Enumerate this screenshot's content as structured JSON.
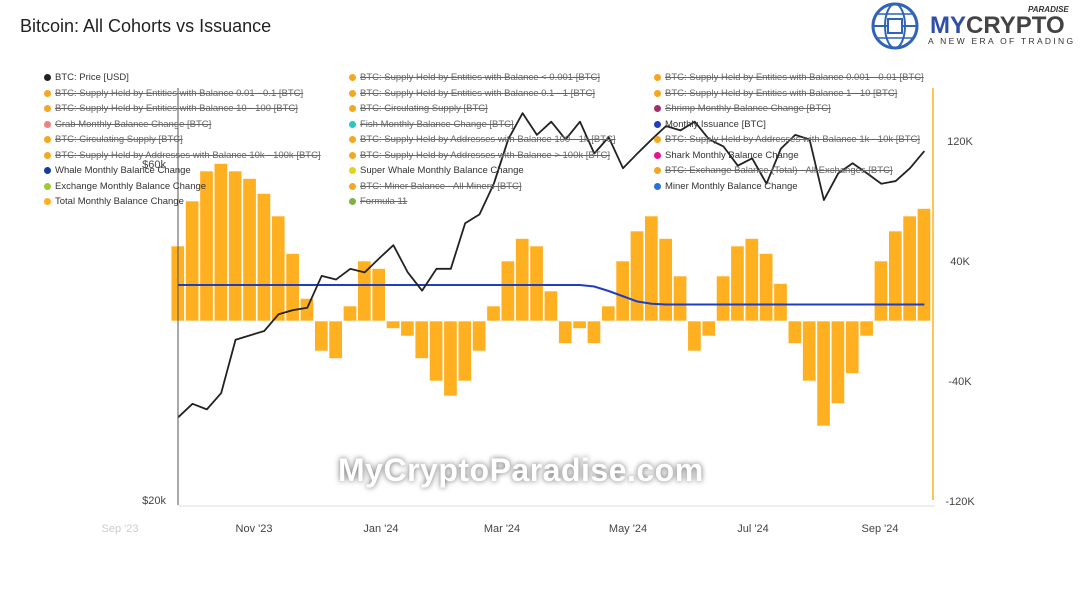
{
  "title": "Bitcoin: All Cohorts vs Issuance",
  "logo": {
    "brand": "MYCRYPTO",
    "small": "PARADISE",
    "tagline": "A NEW ERA OF TRADING"
  },
  "watermark": "MyCryptoParadise.com",
  "legend": [
    [
      {
        "label": "BTC: Price [USD]",
        "color": "#222222",
        "hidden": false
      },
      {
        "label": "BTC: Supply Held by Entities with Balance 0.01 - 0.1 [BTC]",
        "color": "#f5a623",
        "hidden": true
      },
      {
        "label": "BTC: Supply Held by Entities with Balance 10 - 100 [BTC]",
        "color": "#f5a623",
        "hidden": true
      },
      {
        "label": "Crab Monthly Balance Change [BTC]",
        "color": "#f08080",
        "hidden": true
      },
      {
        "label": "BTC: Circulating Supply [BTC]",
        "color": "#f5a623",
        "hidden": true
      },
      {
        "label": "BTC: Supply Held by Addresses with Balance 10k - 100k [BTC]",
        "color": "#f5a623",
        "hidden": true
      },
      {
        "label": "Whale Monthly Balance Change",
        "color": "#1a3a9c",
        "hidden": false
      },
      {
        "label": "Exchange Monthly Balance Change",
        "color": "#9acd32",
        "hidden": false
      },
      {
        "label": "Total Monthly Balance Change",
        "color": "#ffb020",
        "hidden": false
      }
    ],
    [
      {
        "label": "BTC: Supply Held by Entities with Balance < 0.001 [BTC]",
        "color": "#f5a623",
        "hidden": true
      },
      {
        "label": "BTC: Supply Held by Entities with Balance 0.1 - 1 [BTC]",
        "color": "#f5a623",
        "hidden": true
      },
      {
        "label": "BTC: Circulating Supply [BTC]",
        "color": "#f5a623",
        "hidden": true
      },
      {
        "label": "Fish Monthly Balance Change [BTC]",
        "color": "#2ec4c4",
        "hidden": true
      },
      {
        "label": "BTC: Supply Held by Addresses with Balance 100 - 1k [BTC]",
        "color": "#f5a623",
        "hidden": true
      },
      {
        "label": "BTC: Supply Held by Addresses with Balance > 100k [BTC]",
        "color": "#f5a623",
        "hidden": true
      },
      {
        "label": "Super Whale Monthly Balance Change",
        "color": "#e6d21c",
        "hidden": false
      },
      {
        "label": "BTC: Miner Balance - All Miners [BTC]",
        "color": "#f5a623",
        "hidden": true
      },
      {
        "label": "Formula 11",
        "color": "#7cb342",
        "hidden": true
      }
    ],
    [
      {
        "label": "BTC: Supply Held by Entities with Balance 0.001 - 0.01 [BTC]",
        "color": "#f5a623",
        "hidden": true
      },
      {
        "label": "BTC: Supply Held by Entities with Balance 1 - 10 [BTC]",
        "color": "#f5a623",
        "hidden": true
      },
      {
        "label": "Shrimp Monthly Balance Change [BTC]",
        "color": "#a0306a",
        "hidden": true
      },
      {
        "label": "Monthly Issuance [BTC]",
        "color": "#1f3fbf",
        "hidden": false
      },
      {
        "label": "BTC: Supply Held by Addresses with Balance 1k - 10k [BTC]",
        "color": "#f5a623",
        "hidden": true
      },
      {
        "label": "Shark Monthly Balance Change",
        "color": "#e0158f",
        "hidden": false
      },
      {
        "label": "BTC: Exchange Balance (Total) - All Exchanges [BTC]",
        "color": "#f5a623",
        "hidden": true
      },
      {
        "label": "Miner Monthly Balance Change",
        "color": "#2a6fdb",
        "hidden": false
      }
    ]
  ],
  "chart_data": {
    "type": "bar+line",
    "title": "Bitcoin: All Cohorts vs Issuance",
    "x_ticks": [
      "Sep '23",
      "Nov '23",
      "Jan '24",
      "Mar '24",
      "May '24",
      "Jul '24",
      "Sep '24"
    ],
    "y_left": {
      "scale": "log",
      "ticks": [
        "$60k",
        "$20k"
      ]
    },
    "y_right": {
      "scale": "linear",
      "ticks": [
        "120K",
        "40K",
        "-40K",
        "-120K"
      ],
      "range": [
        -120000,
        160000
      ]
    },
    "grid": false,
    "dates": [
      "2023-09-25",
      "2023-10-02",
      "2023-10-09",
      "2023-10-16",
      "2023-10-23",
      "2023-10-30",
      "2023-11-06",
      "2023-11-13",
      "2023-11-20",
      "2023-11-27",
      "2023-12-04",
      "2023-12-11",
      "2023-12-18",
      "2023-12-25",
      "2024-01-01",
      "2024-01-08",
      "2024-01-15",
      "2024-01-22",
      "2024-01-29",
      "2024-02-05",
      "2024-02-12",
      "2024-02-19",
      "2024-02-26",
      "2024-03-04",
      "2024-03-11",
      "2024-03-18",
      "2024-03-25",
      "2024-04-01",
      "2024-04-08",
      "2024-04-15",
      "2024-04-22",
      "2024-04-29",
      "2024-05-06",
      "2024-05-13",
      "2024-05-20",
      "2024-05-27",
      "2024-06-03",
      "2024-06-10",
      "2024-06-17",
      "2024-06-24",
      "2024-07-01",
      "2024-07-08",
      "2024-07-15",
      "2024-07-22",
      "2024-07-29",
      "2024-08-05",
      "2024-08-12",
      "2024-08-19",
      "2024-08-26",
      "2024-09-02",
      "2024-09-09",
      "2024-09-16",
      "2024-09-23"
    ],
    "series": [
      {
        "name": "BTC: Price [USD]",
        "axis": "left",
        "type": "line",
        "color": "#222222",
        "values": [
          26300,
          27500,
          27000,
          28500,
          34000,
          34500,
          35000,
          37000,
          37500,
          37800,
          42000,
          41500,
          43000,
          42500,
          44500,
          46500,
          42500,
          40000,
          43000,
          43000,
          50000,
          51500,
          57000,
          66000,
          72000,
          67000,
          70000,
          66000,
          70000,
          63000,
          66500,
          60000,
          63000,
          66000,
          69000,
          68000,
          70000,
          66000,
          64500,
          60500,
          62000,
          57000,
          64000,
          67000,
          66000,
          54000,
          59000,
          61000,
          59000,
          57000,
          57500,
          60000,
          63500
        ]
      },
      {
        "name": "Total Monthly Balance Change",
        "axis": "right",
        "type": "bar",
        "color": "#ffb020",
        "values": [
          50000,
          80000,
          100000,
          105000,
          100000,
          95000,
          85000,
          70000,
          45000,
          15000,
          -20000,
          -25000,
          10000,
          40000,
          35000,
          -5000,
          -10000,
          -25000,
          -40000,
          -50000,
          -40000,
          -20000,
          10000,
          40000,
          55000,
          50000,
          20000,
          -15000,
          -5000,
          -15000,
          10000,
          40000,
          60000,
          70000,
          55000,
          30000,
          -20000,
          -10000,
          30000,
          50000,
          55000,
          45000,
          25000,
          -15000,
          -40000,
          -70000,
          -55000,
          -35000,
          -10000,
          40000,
          60000,
          70000,
          75000
        ]
      },
      {
        "name": "Monthly Issuance [BTC]",
        "axis": "right",
        "type": "line",
        "color": "#1f3fbf",
        "values": [
          24000,
          24000,
          24000,
          24000,
          24000,
          24000,
          24000,
          24000,
          24000,
          24000,
          24000,
          24000,
          24000,
          24000,
          24000,
          24000,
          24000,
          24000,
          24000,
          24000,
          24000,
          24000,
          24000,
          24000,
          24000,
          24000,
          24000,
          24000,
          24000,
          23000,
          20000,
          16500,
          13000,
          11500,
          11000,
          11000,
          11000,
          11000,
          11000,
          11000,
          11000,
          11000,
          11000,
          11000,
          11000,
          11000,
          11000,
          11000,
          11000,
          11000,
          11000,
          11000,
          11000
        ]
      }
    ]
  }
}
